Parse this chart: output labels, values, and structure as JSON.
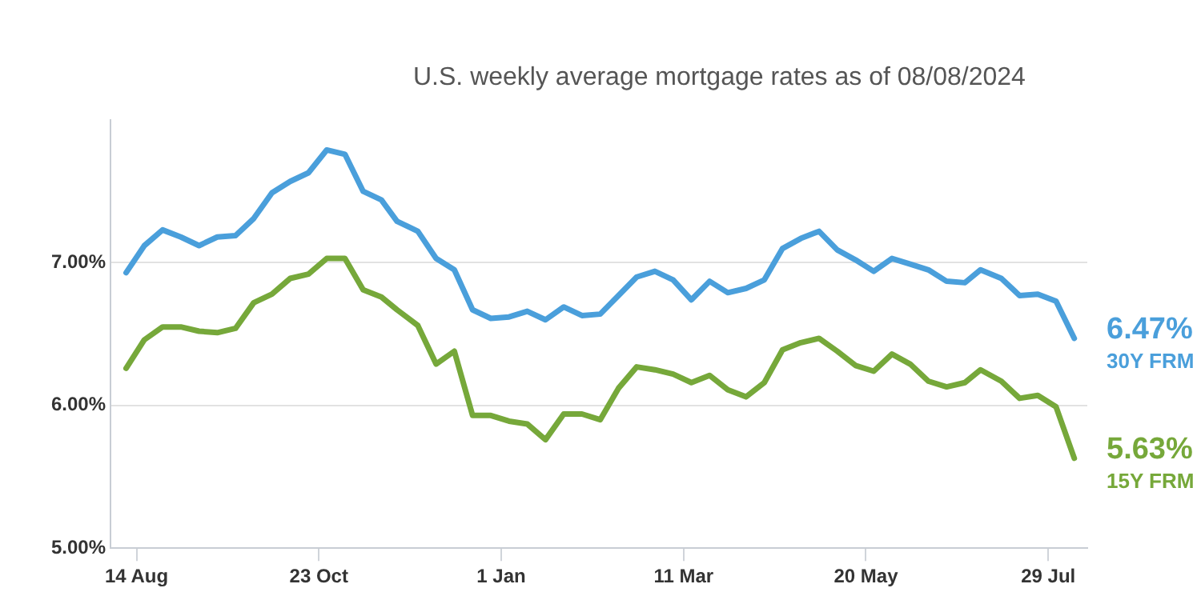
{
  "chart_data": {
    "type": "line",
    "subtitle": "U.S. weekly average mortgage rates as of 08/08/2024",
    "x": [
      "2023-08-10",
      "2023-08-17",
      "2023-08-24",
      "2023-08-31",
      "2023-09-07",
      "2023-09-14",
      "2023-09-21",
      "2023-09-28",
      "2023-10-05",
      "2023-10-12",
      "2023-10-19",
      "2023-10-26",
      "2023-11-02",
      "2023-11-09",
      "2023-11-16",
      "2023-11-22",
      "2023-11-30",
      "2023-12-07",
      "2023-12-14",
      "2023-12-21",
      "2023-12-28",
      "2024-01-04",
      "2024-01-11",
      "2024-01-18",
      "2024-01-25",
      "2024-02-01",
      "2024-02-08",
      "2024-02-15",
      "2024-02-22",
      "2024-02-29",
      "2024-03-07",
      "2024-03-14",
      "2024-03-21",
      "2024-03-28",
      "2024-04-04",
      "2024-04-11",
      "2024-04-18",
      "2024-04-25",
      "2024-05-02",
      "2024-05-09",
      "2024-05-16",
      "2024-05-23",
      "2024-05-30",
      "2024-06-06",
      "2024-06-13",
      "2024-06-20",
      "2024-06-27",
      "2024-07-03",
      "2024-07-11",
      "2024-07-18",
      "2024-07-25",
      "2024-08-01",
      "2024-08-08"
    ],
    "series": [
      {
        "name": "30Y FRM",
        "color": "#4a9fdb",
        "values": [
          6.93,
          7.12,
          7.23,
          7.18,
          7.12,
          7.18,
          7.19,
          7.31,
          7.49,
          7.57,
          7.63,
          7.79,
          7.76,
          7.5,
          7.44,
          7.29,
          7.22,
          7.03,
          6.95,
          6.67,
          6.61,
          6.62,
          6.66,
          6.6,
          6.69,
          6.63,
          6.64,
          6.77,
          6.9,
          6.94,
          6.88,
          6.74,
          6.87,
          6.79,
          6.82,
          6.88,
          7.1,
          7.17,
          7.22,
          7.09,
          7.02,
          6.94,
          7.03,
          6.99,
          6.95,
          6.87,
          6.86,
          6.95,
          6.89,
          6.77,
          6.78,
          6.73,
          6.47
        ],
        "value_labels": [
          null,
          null,
          null,
          null,
          null,
          null,
          null,
          null,
          null,
          null,
          null,
          null,
          null,
          null,
          null,
          null,
          null,
          null,
          null,
          null,
          null,
          null,
          null,
          null,
          null,
          null,
          null,
          null,
          null,
          null,
          null,
          null,
          null,
          null,
          null,
          null,
          null,
          null,
          null,
          null,
          null,
          null,
          null,
          null,
          null,
          null,
          null,
          null,
          null,
          null,
          null,
          null,
          "6.47%"
        ]
      },
      {
        "name": "15Y FRM",
        "color": "#76a83a",
        "values": [
          6.26,
          6.46,
          6.55,
          6.55,
          6.52,
          6.51,
          6.54,
          6.72,
          6.78,
          6.89,
          6.92,
          7.03,
          7.03,
          6.81,
          6.76,
          6.67,
          6.56,
          6.29,
          6.38,
          5.93,
          5.93,
          5.89,
          5.87,
          5.76,
          5.94,
          5.94,
          5.9,
          6.12,
          6.27,
          6.25,
          6.22,
          6.16,
          6.21,
          6.11,
          6.06,
          6.16,
          6.39,
          6.44,
          6.47,
          6.38,
          6.28,
          6.24,
          6.36,
          6.29,
          6.17,
          6.13,
          6.16,
          6.25,
          6.17,
          6.05,
          6.07,
          5.99,
          5.63
        ],
        "value_labels": [
          null,
          null,
          null,
          null,
          null,
          null,
          null,
          null,
          null,
          null,
          null,
          null,
          null,
          null,
          null,
          null,
          null,
          null,
          null,
          null,
          null,
          null,
          null,
          null,
          null,
          null,
          null,
          null,
          null,
          null,
          null,
          null,
          null,
          null,
          null,
          null,
          null,
          null,
          null,
          null,
          null,
          null,
          null,
          null,
          null,
          null,
          null,
          null,
          null,
          null,
          null,
          null,
          "5.63%"
        ]
      }
    ],
    "xlim": [
      "2023-08-04",
      "2024-08-13"
    ],
    "xticks": [
      {
        "value": "2023-08-14",
        "label": "14 Aug"
      },
      {
        "value": "2023-10-23",
        "label": "23 Oct"
      },
      {
        "value": "2024-01-01",
        "label": "1 Jan"
      },
      {
        "value": "2024-03-11",
        "label": "11 Mar"
      },
      {
        "value": "2024-05-20",
        "label": "20 May"
      },
      {
        "value": "2024-07-29",
        "label": "29 Jul"
      }
    ],
    "ylim": [
      5,
      8
    ],
    "yticks": [
      {
        "value": 5,
        "label": "5.00%"
      },
      {
        "value": 6,
        "label": "6.00%"
      },
      {
        "value": 7,
        "label": "7.00%"
      }
    ],
    "grid": "y",
    "legend": false,
    "marker": "none",
    "line_style": "solid"
  }
}
